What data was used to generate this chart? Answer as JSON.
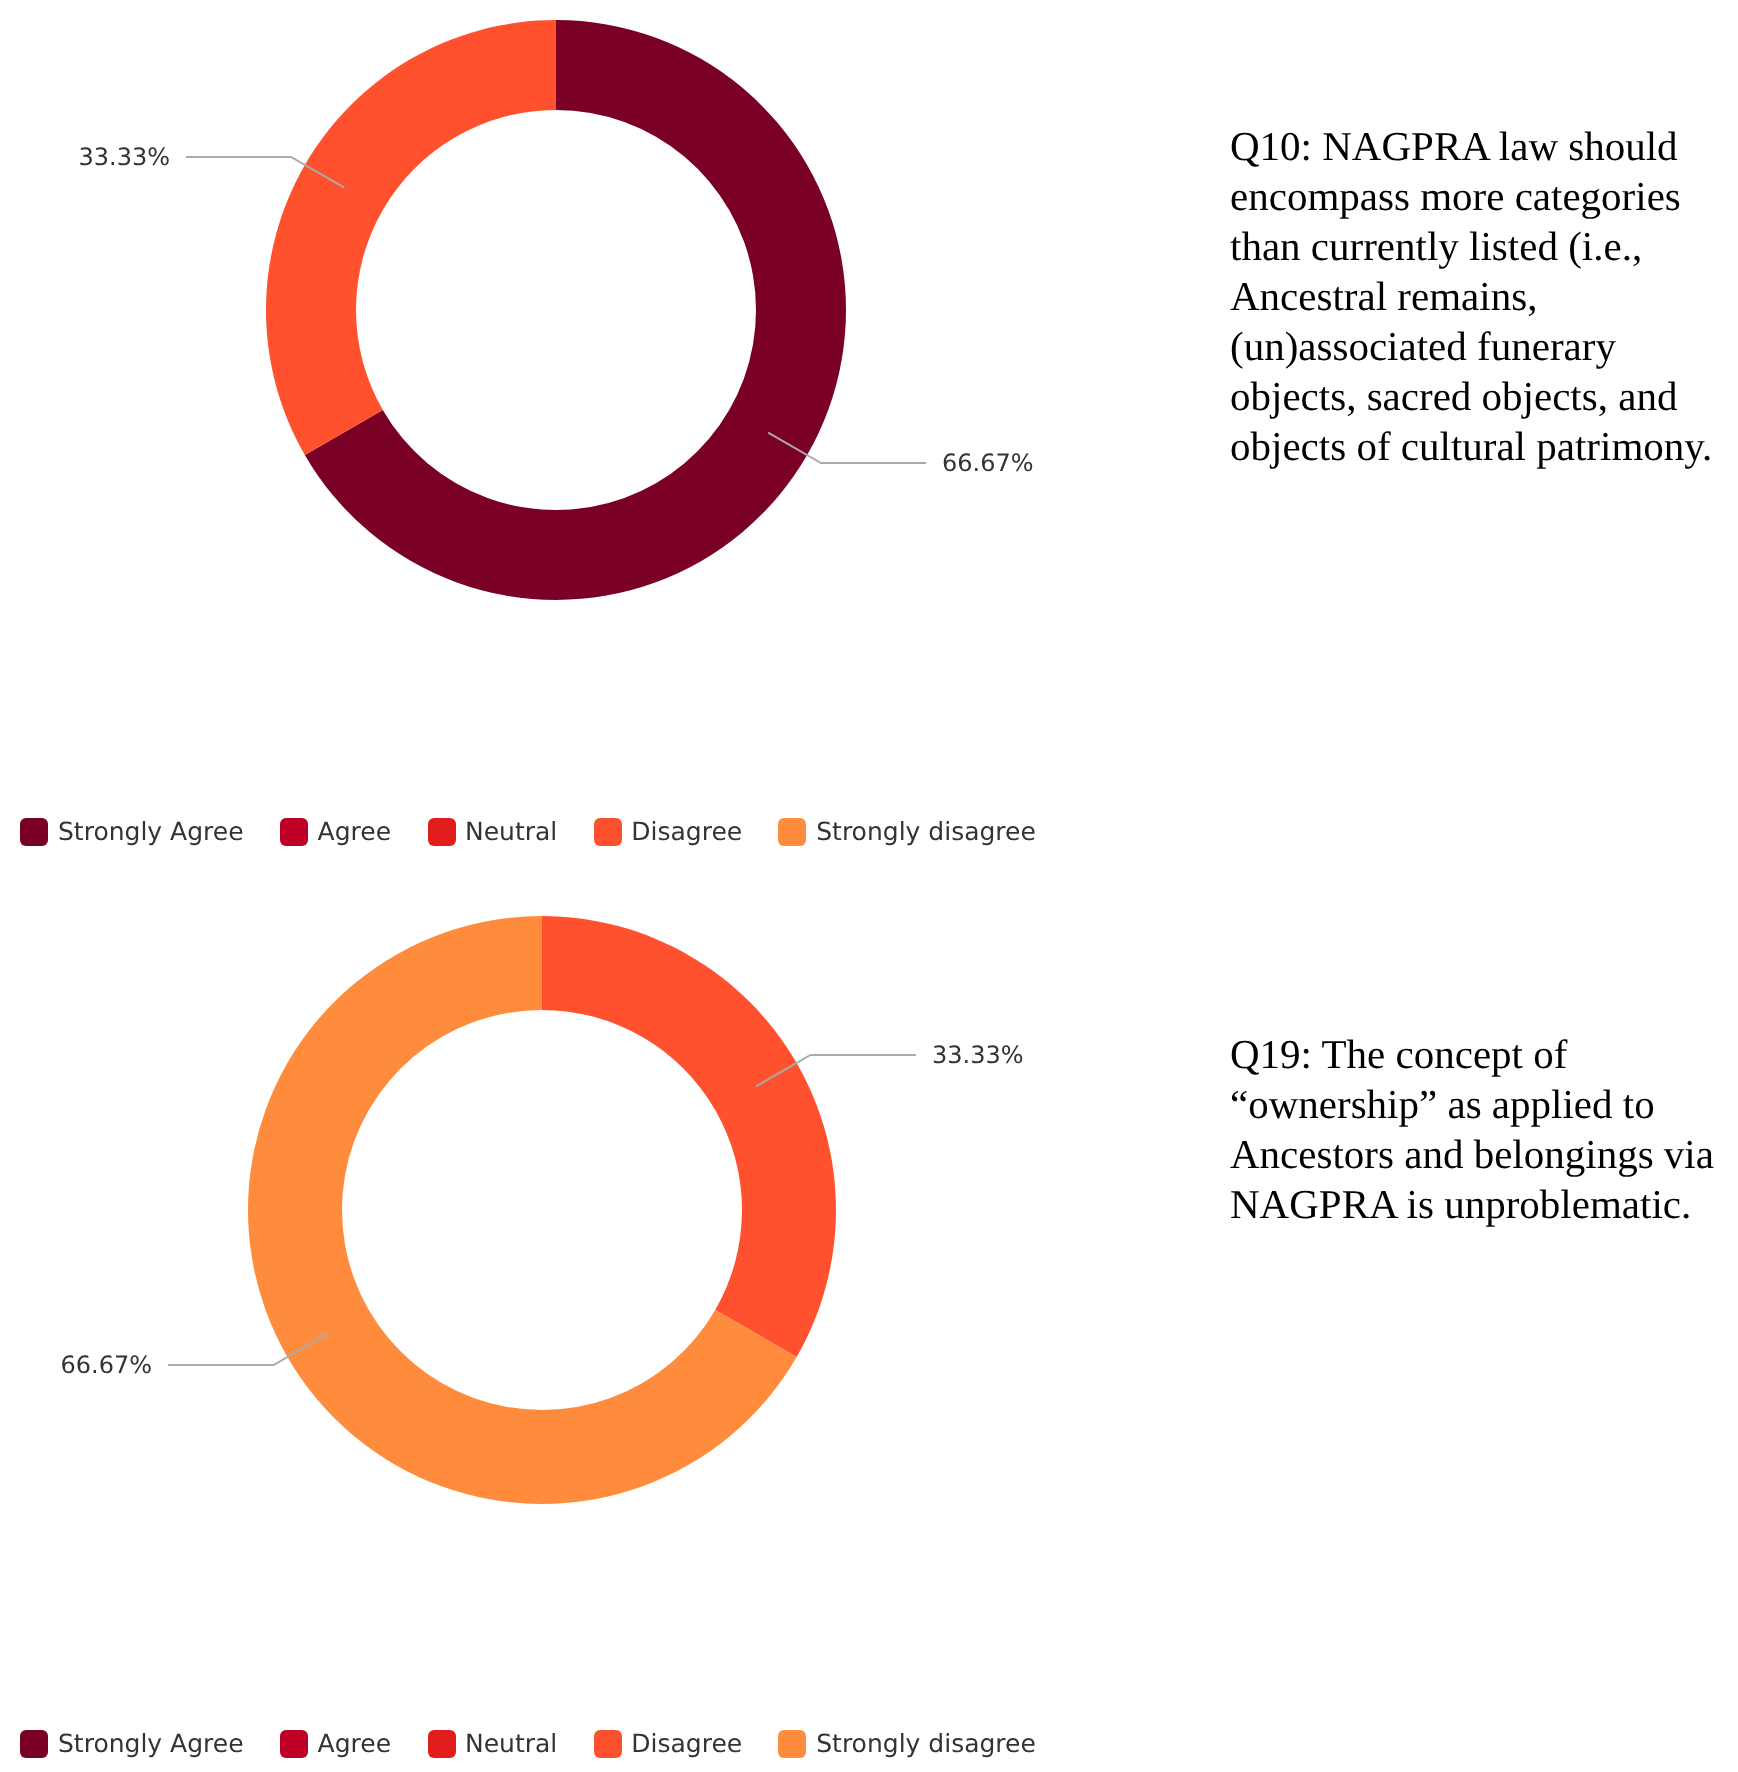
{
  "chart_data": [
    {
      "type": "donut",
      "title": "Q10: NAGPRA law should encompass more categories than currently listed (i.e., Ancestral remains, (un)associated funerary objects, sacred objects, and objects of cultural patrimony.",
      "categories": [
        "Strongly Agree",
        "Agree",
        "Neutral",
        "Disagree",
        "Strongly disagree"
      ],
      "values": [
        66.67,
        0,
        0,
        33.33,
        0
      ],
      "value_labels": [
        "66.67%",
        null,
        null,
        "33.33%",
        null
      ],
      "colors": [
        "#7a0026",
        "#be0028",
        "#e31c1c",
        "#ff512d",
        "#ff8c3c"
      ],
      "legend": "bottom"
    },
    {
      "type": "donut",
      "title": "Q19: The concept of “ownership” as applied to Ancestors and belongings via NAGPRA is unproblematic.",
      "categories": [
        "Strongly Agree",
        "Agree",
        "Neutral",
        "Disagree",
        "Strongly disagree"
      ],
      "values": [
        0,
        0,
        0,
        33.33,
        66.67
      ],
      "value_labels": [
        null,
        null,
        null,
        "33.33%",
        "66.67%"
      ],
      "colors": [
        "#7a0026",
        "#be0028",
        "#e31c1c",
        "#ff512d",
        "#ff8c3c"
      ],
      "legend": "bottom"
    }
  ]
}
